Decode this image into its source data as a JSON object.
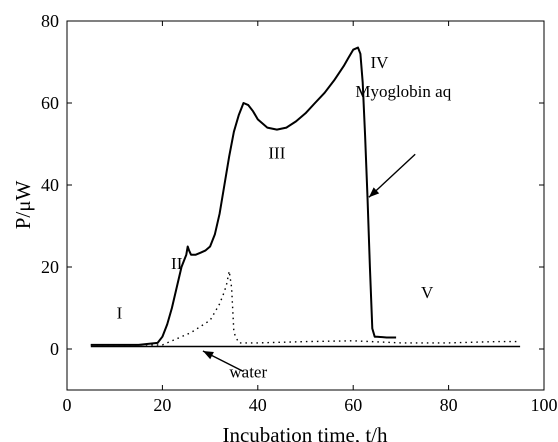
{
  "chart_data": {
    "type": "line",
    "title": "",
    "xlabel": "Incubation time, t/h",
    "ylabel": "P/μW",
    "xlim": [
      0,
      100
    ],
    "ylim": [
      -10,
      80
    ],
    "xticks": [
      0,
      20,
      40,
      60,
      80,
      100
    ],
    "yticks": [
      0,
      20,
      40,
      60,
      80
    ],
    "grid": false,
    "legend": "none",
    "series": [
      {
        "name": "Myoglobin aq",
        "style": "solid",
        "color": "#000000",
        "x": [
          5,
          10,
          15,
          19,
          20,
          21,
          22,
          23,
          24,
          25,
          25.3,
          25.6,
          26,
          27,
          28,
          29,
          30,
          31,
          32,
          33,
          34,
          35,
          36,
          37,
          38,
          39,
          40,
          42,
          44,
          46,
          48,
          50,
          52,
          54,
          56,
          58,
          59,
          60,
          61,
          61.5,
          62,
          62.5,
          63,
          63.5,
          64,
          64.5,
          65,
          67,
          69
        ],
        "y": [
          1,
          1,
          1,
          1.5,
          3,
          6,
          10,
          15,
          20,
          23,
          25,
          24,
          23,
          23,
          23.5,
          24,
          25,
          28,
          33,
          40,
          47,
          53,
          57,
          60,
          59.5,
          58,
          56,
          54,
          53.5,
          54,
          55.5,
          57.5,
          60,
          62.5,
          65.5,
          69,
          71,
          73,
          73.5,
          72,
          65,
          52,
          37,
          20,
          5,
          3,
          3,
          2.8,
          2.8
        ]
      },
      {
        "name": "",
        "style": "dotted",
        "color": "#000000",
        "x": [
          5,
          15,
          20,
          22,
          24,
          26,
          28,
          30,
          31,
          32,
          33,
          33.5,
          34,
          34.5,
          35,
          36,
          40,
          50,
          60,
          70,
          80,
          90,
          95
        ],
        "y": [
          1,
          1,
          1,
          2,
          3,
          4,
          5.5,
          7,
          9,
          11,
          14,
          16,
          19,
          15,
          4,
          1.5,
          1.5,
          1.8,
          2,
          1.5,
          1.5,
          1.8,
          1.8
        ]
      },
      {
        "name": "water",
        "style": "solid",
        "color": "#000000",
        "x": [
          5,
          95
        ],
        "y": [
          0.6,
          0.6
        ]
      }
    ],
    "annotations": [
      {
        "text": "I",
        "x": 11,
        "y": 7.5
      },
      {
        "text": "II",
        "x": 23,
        "y": 19.5
      },
      {
        "text": "III",
        "x": 44,
        "y": 46.5
      },
      {
        "text": "IV",
        "x": 65.5,
        "y": 68.5
      },
      {
        "text": "V",
        "x": 75.5,
        "y": 12.5
      },
      {
        "text": "Myoglobin aq",
        "x": 70.5,
        "y": 61.5
      },
      {
        "text": "water",
        "x": 38,
        "y": -7
      }
    ],
    "arrows": [
      {
        "name": "myoglobin-arrow",
        "from": [
          73,
          47.5
        ],
        "to": [
          63.3,
          37
        ]
      },
      {
        "name": "water-arrow",
        "from": [
          37,
          -5.5
        ],
        "to": [
          28.5,
          -0.5
        ]
      }
    ]
  }
}
